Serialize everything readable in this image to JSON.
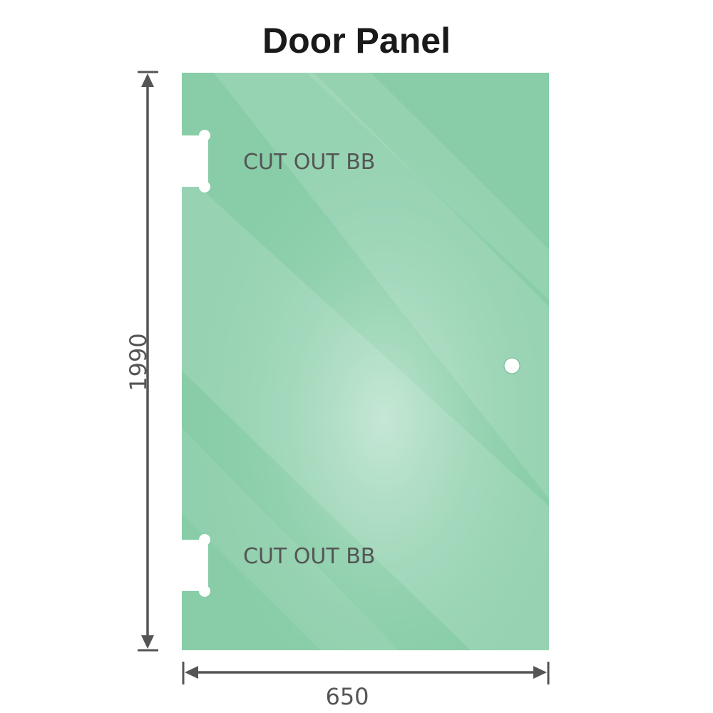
{
  "title": "Door Panel",
  "panel": {
    "cutout_labels": [
      "CUT OUT BB",
      "CUT OUT BB"
    ],
    "glass_color": "#86cca6",
    "highlight_color": "#bfe5d0"
  },
  "dimensions": {
    "height": "1990",
    "width": "650",
    "line_color": "#555555"
  }
}
